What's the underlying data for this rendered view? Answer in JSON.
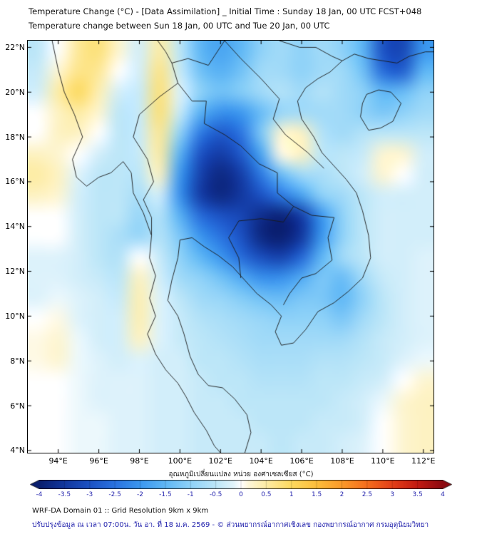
{
  "page": {
    "title_line1": "Temperature Change (°C) - [Data Assimilation] _ Initial Time : Sunday 18 Jan, 00 UTC FCST+048",
    "title_line2": "Temperature change between Sun 18 Jan, 00 UTC and Tue 20 Jan, 00 UTC"
  },
  "footer": {
    "line1": "WRF-DA Domain 01 :: Grid Resolution 9km x 9km",
    "line2": "ปรับปรุงข้อมูล ณ เวลา 07:00น. วัน อา. ที่ 18 ม.ค. 2569 - © ส่วนพยากรณ์อากาศเชิงเลข กองพยากรณ์อากาศ กรมอุตุนิยมวิทยา"
  },
  "colors": {
    "title_text": "#111111",
    "axis_tick_text": "#000000",
    "colorbar_tick_text": "#2323ad",
    "footer_note_text": "#2323ad",
    "map_outline": "#1a1a1a"
  },
  "chart_data": {
    "type": "heatmap",
    "title": "Temperature Change (°C) - [Data Assimilation] _ Initial Time : Sunday 18 Jan, 00 UTC FCST+048",
    "subtitle": "Temperature change between Sun 18 Jan, 00 UTC and Tue 20 Jan, 00 UTC",
    "units": "°C",
    "lon_range": [
      92.5,
      112.5
    ],
    "lat_range": [
      3.9,
      22.3
    ],
    "x_ticks": [
      {
        "label": "94°E",
        "lon": 94
      },
      {
        "label": "96°E",
        "lon": 96
      },
      {
        "label": "98°E",
        "lon": 98
      },
      {
        "label": "100°E",
        "lon": 100
      },
      {
        "label": "102°E",
        "lon": 102
      },
      {
        "label": "104°E",
        "lon": 104
      },
      {
        "label": "106°E",
        "lon": 106
      },
      {
        "label": "108°E",
        "lon": 108
      },
      {
        "label": "110°E",
        "lon": 110
      },
      {
        "label": "112°E",
        "lon": 112
      }
    ],
    "y_ticks": [
      {
        "label": "4°N",
        "lat": 4
      },
      {
        "label": "6°N",
        "lat": 6
      },
      {
        "label": "8°N",
        "lat": 8
      },
      {
        "label": "10°N",
        "lat": 10
      },
      {
        "label": "12°N",
        "lat": 12
      },
      {
        "label": "14°N",
        "lat": 14
      },
      {
        "label": "16°N",
        "lat": 16
      },
      {
        "label": "18°N",
        "lat": 18
      },
      {
        "label": "20°N",
        "lat": 20
      },
      {
        "label": "22°N",
        "lat": 22
      }
    ],
    "colorbar": {
      "label": "อุณหภูมิเปลี่ยนแปลง หน่วย องศาเซลเซียส (°C)",
      "min": -4,
      "max": 4,
      "tick_labels": [
        "-4",
        "-3.5",
        "-3",
        "-2.5",
        "-2",
        "-1.5",
        "-1",
        "-0.5",
        "0",
        "0.5",
        "1",
        "1.5",
        "2",
        "2.5",
        "3",
        "3.5",
        "4"
      ],
      "colormap": [
        [
          -4,
          "#0a1e6e"
        ],
        [
          -3.5,
          "#12379e"
        ],
        [
          -3,
          "#1c52c4"
        ],
        [
          -2.5,
          "#2a73e0"
        ],
        [
          -2,
          "#3b97ef"
        ],
        [
          -1.5,
          "#5fb7f5"
        ],
        [
          -1,
          "#8fd2f8"
        ],
        [
          -0.5,
          "#bce6f8"
        ],
        [
          -0.15,
          "#e2f4fb"
        ],
        [
          0,
          "#ffffff"
        ],
        [
          0.15,
          "#fdf6d8"
        ],
        [
          0.5,
          "#fdeca4"
        ],
        [
          1,
          "#fcd95e"
        ],
        [
          1.5,
          "#fdbe3c"
        ],
        [
          2,
          "#fb9a29"
        ],
        [
          2.5,
          "#f56d1d"
        ],
        [
          3,
          "#e33f18"
        ],
        [
          3.5,
          "#c21a12"
        ],
        [
          4,
          "#8c0a10"
        ]
      ]
    },
    "grid": {
      "lons": [
        93.0,
        94.0,
        95.0,
        96.0,
        97.0,
        98.0,
        99.0,
        100.0,
        101.0,
        102.0,
        103.0,
        104.0,
        105.0,
        106.0,
        107.0,
        108.0,
        109.0,
        110.0,
        111.0,
        112.0
      ],
      "lats": [
        21.8,
        20.9,
        20.0,
        19.1,
        18.2,
        17.2,
        16.3,
        15.4,
        14.5,
        13.6,
        12.6,
        11.7,
        10.8,
        9.9,
        9.0,
        8.0,
        7.1,
        6.2,
        5.3,
        4.4
      ],
      "values": [
        [
          -0.5,
          0.0,
          0.6,
          0.8,
          0.2,
          -0.3,
          0.5,
          -0.5,
          -1.5,
          -1.8,
          -1.5,
          -1.0,
          -0.8,
          -1.0,
          -0.8,
          -1.0,
          -1.5,
          -3.0,
          -3.2,
          -2.0
        ],
        [
          -0.4,
          0.2,
          0.7,
          0.6,
          0.0,
          -0.3,
          0.7,
          -0.4,
          -1.3,
          -1.6,
          -1.3,
          -0.8,
          -0.8,
          -1.0,
          -0.8,
          -0.8,
          -1.3,
          -2.6,
          -2.8,
          -1.5
        ],
        [
          -0.3,
          0.5,
          1.0,
          0.4,
          -0.3,
          -0.4,
          0.8,
          -0.2,
          -1.0,
          -1.3,
          -1.1,
          -0.8,
          -0.6,
          -0.8,
          -0.6,
          -0.8,
          -1.0,
          -1.5,
          -1.4,
          -1.0
        ],
        [
          0.0,
          0.3,
          0.5,
          0.2,
          -0.5,
          -0.4,
          0.8,
          -0.4,
          -1.6,
          -2.1,
          -2.0,
          -1.4,
          -0.9,
          -0.8,
          -0.8,
          -0.8,
          -1.0,
          -1.2,
          -1.0,
          -0.8
        ],
        [
          0.0,
          0.3,
          0.3,
          0.0,
          -0.5,
          -0.4,
          0.6,
          -1.0,
          -2.4,
          -2.9,
          -2.5,
          -1.2,
          0.2,
          0.3,
          -0.6,
          -0.8,
          -0.6,
          -0.5,
          -0.5,
          -0.5
        ],
        [
          0.3,
          0.2,
          0.0,
          -0.3,
          -0.5,
          -0.4,
          0.5,
          -1.6,
          -3.0,
          -3.4,
          -2.9,
          -1.8,
          0.1,
          0.3,
          -0.5,
          -0.5,
          -0.4,
          0.2,
          0.2,
          -0.3
        ],
        [
          0.5,
          0.3,
          -0.2,
          -0.5,
          -0.5,
          -0.5,
          0.3,
          -2.0,
          -3.3,
          -3.8,
          -3.4,
          -2.4,
          -1.4,
          -0.8,
          -0.7,
          -0.5,
          -0.3,
          0.2,
          0.0,
          -0.3
        ],
        [
          0.3,
          0.2,
          -0.3,
          -0.5,
          -0.5,
          -0.7,
          -0.3,
          -2.1,
          -3.4,
          -3.8,
          -3.5,
          -3.0,
          -2.4,
          -1.8,
          -1.0,
          -0.8,
          -0.5,
          -0.3,
          -0.3,
          -0.3
        ],
        [
          0.0,
          0.0,
          -0.3,
          -0.5,
          -0.5,
          -0.9,
          -0.6,
          -1.6,
          -2.6,
          -3.0,
          -3.2,
          -3.7,
          -3.9,
          -3.4,
          -2.0,
          -1.0,
          -0.5,
          -0.3,
          -0.3,
          -0.3
        ],
        [
          0.0,
          0.0,
          -0.3,
          -0.5,
          -0.7,
          -0.9,
          -0.6,
          -1.2,
          -2.0,
          -2.5,
          -3.0,
          -3.8,
          -4.0,
          -3.5,
          -2.0,
          -1.0,
          -0.5,
          -0.3,
          -0.3,
          -0.3
        ],
        [
          -0.2,
          -0.2,
          -0.3,
          -0.5,
          -0.6,
          0.0,
          -0.4,
          -1.0,
          -1.5,
          -2.0,
          -2.6,
          -3.1,
          -3.3,
          -2.7,
          -1.5,
          -0.8,
          -0.5,
          -0.3,
          -0.3,
          -0.2
        ],
        [
          -0.2,
          -0.2,
          -0.3,
          -0.4,
          -0.5,
          0.3,
          -0.3,
          -0.8,
          -1.0,
          -1.3,
          -1.7,
          -2.1,
          -2.1,
          -1.7,
          -1.2,
          -1.4,
          -0.8,
          -0.4,
          -0.3,
          -0.2
        ],
        [
          -0.2,
          -0.1,
          -0.2,
          -0.3,
          -0.4,
          0.4,
          -0.2,
          -0.5,
          -0.8,
          -0.9,
          -1.1,
          -1.3,
          -1.4,
          -1.2,
          -1.2,
          -1.5,
          -1.0,
          -0.5,
          -0.3,
          -0.2
        ],
        [
          0.0,
          0.1,
          -0.2,
          -0.3,
          -0.3,
          0.4,
          -0.2,
          -0.4,
          -0.6,
          -0.7,
          -0.8,
          -0.9,
          -1.0,
          -1.0,
          -1.0,
          -1.2,
          -0.8,
          -0.5,
          -0.3,
          -0.2
        ],
        [
          0.1,
          0.2,
          -0.1,
          -0.3,
          -0.3,
          0.3,
          -0.2,
          -0.4,
          -0.5,
          -0.6,
          -0.7,
          -0.8,
          -0.8,
          -0.8,
          -0.8,
          -0.8,
          -0.6,
          -0.4,
          -0.3,
          -0.2
        ],
        [
          0.1,
          0.2,
          -0.1,
          -0.2,
          -0.3,
          -0.2,
          -0.3,
          -0.3,
          -0.5,
          -0.5,
          -0.6,
          -0.7,
          -0.7,
          -0.7,
          -0.6,
          -0.6,
          -0.5,
          -0.4,
          -0.2,
          -0.1
        ],
        [
          0.0,
          0.0,
          -0.1,
          -0.2,
          -0.2,
          -0.2,
          -0.3,
          -0.3,
          -0.4,
          -0.5,
          -0.5,
          -0.6,
          -0.6,
          -0.6,
          -0.5,
          -0.5,
          -0.4,
          -0.3,
          0.0,
          0.2
        ],
        [
          0.0,
          0.0,
          -0.1,
          -0.2,
          -0.2,
          -0.2,
          -0.3,
          -0.3,
          -0.4,
          -0.4,
          -0.5,
          -0.5,
          -0.5,
          -0.5,
          -0.5,
          -0.4,
          -0.3,
          -0.1,
          0.2,
          0.3
        ],
        [
          0.0,
          0.0,
          -0.1,
          -0.1,
          -0.2,
          -0.2,
          -0.3,
          -0.3,
          -0.4,
          -0.4,
          -0.4,
          -0.5,
          -0.5,
          -0.5,
          -0.4,
          -0.4,
          -0.3,
          0.0,
          0.2,
          0.3
        ],
        [
          0.0,
          0.0,
          -0.1,
          -0.1,
          -0.2,
          -0.2,
          -0.3,
          -0.3,
          -0.4,
          -0.4,
          -0.4,
          -0.4,
          -0.5,
          -0.4,
          -0.4,
          -0.3,
          -0.2,
          0.0,
          0.2,
          0.3
        ]
      ]
    }
  }
}
